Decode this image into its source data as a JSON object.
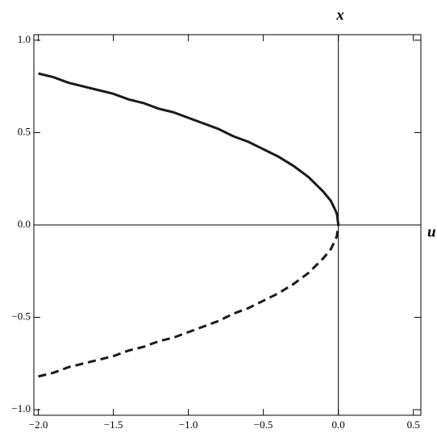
{
  "chart_data": {
    "type": "line",
    "x_label": "u",
    "y_label": "x",
    "x": [
      -2.0,
      -1.9,
      -1.8,
      -1.7,
      -1.6,
      -1.5,
      -1.4,
      -1.3,
      -1.2,
      -1.1,
      -1.0,
      -0.9,
      -0.8,
      -0.7,
      -0.6,
      -0.5,
      -0.4,
      -0.3,
      -0.2,
      -0.1,
      -0.05,
      -0.02,
      -0.01,
      0.0
    ],
    "series": [
      {
        "color": "#1a1a1a",
        "dashed": false,
        "values": [
          0.82,
          0.8,
          0.77,
          0.75,
          0.73,
          0.71,
          0.68,
          0.66,
          0.63,
          0.61,
          0.58,
          0.55,
          0.52,
          0.48,
          0.45,
          0.41,
          0.37,
          0.32,
          0.26,
          0.18,
          0.13,
          0.08,
          0.06,
          0.0
        ]
      },
      {
        "color": "#1a1a1a",
        "dashed": true,
        "values": [
          -0.82,
          -0.8,
          -0.77,
          -0.75,
          -0.73,
          -0.71,
          -0.68,
          -0.66,
          -0.63,
          -0.61,
          -0.58,
          -0.55,
          -0.52,
          -0.48,
          -0.45,
          -0.41,
          -0.37,
          -0.32,
          -0.26,
          -0.18,
          -0.13,
          -0.08,
          -0.06,
          0.0
        ]
      }
    ],
    "xlim": [
      -2.03,
      0.55
    ],
    "ylim": [
      -1.03,
      1.03
    ],
    "xticks": [
      {
        "value": -2.0,
        "label": "−2.0"
      },
      {
        "value": -1.5,
        "label": "−1.5"
      },
      {
        "value": -1.0,
        "label": "−1.0"
      },
      {
        "value": -0.5,
        "label": "−0.5"
      },
      {
        "value": 0.0,
        "label": "0.0"
      },
      0.5
    ],
    "yticks": [
      {
        "value": -1.0,
        "label": "−1.0"
      },
      {
        "value": -0.5,
        "label": "−0.5"
      },
      {
        "value": 0.0,
        "label": "0.0"
      },
      0.5,
      {
        "value": 1.0,
        "label": "1.0"
      }
    ]
  }
}
